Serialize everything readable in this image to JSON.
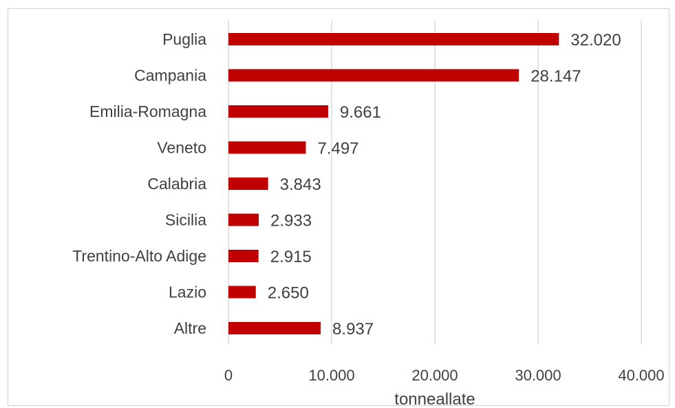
{
  "chart_data": {
    "type": "bar",
    "orientation": "horizontal",
    "categories": [
      "Puglia",
      "Campania",
      "Emilia-Romagna",
      "Veneto",
      "Calabria",
      "Sicilia",
      "Trentino-Alto Adige",
      "Lazio",
      "Altre"
    ],
    "values": [
      32020,
      28147,
      9661,
      7497,
      3843,
      2933,
      2915,
      2650,
      8937
    ],
    "value_labels": [
      "32.020",
      "28.147",
      "9.661",
      "7.497",
      "3.843",
      "2.933",
      "2.915",
      "2.650",
      "8.937"
    ],
    "title": "",
    "xlabel": "tonneallate",
    "ylabel": "",
    "xlim": [
      0,
      40000
    ],
    "x_ticks": [
      0,
      10000,
      20000,
      30000,
      40000
    ],
    "x_tick_labels": [
      "0",
      "10.000",
      "20.000",
      "30.000",
      "40.000"
    ],
    "grid": true,
    "legend": "none",
    "bar_color": "#c00000",
    "grid_color": "#d9d9d9",
    "text_color": "#404040"
  }
}
